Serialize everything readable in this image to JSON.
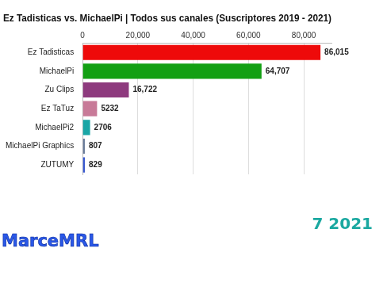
{
  "chart_data": {
    "type": "bar",
    "orientation": "horizontal",
    "title": "Ez Tadisticas vs. MichaelPi | Todos sus canales (Suscriptores 2019 - 2021)",
    "categories": [
      "Ez Tadisticas",
      "MichaelPi",
      "Zu Clips",
      "Ez TaTuz",
      "MichaelPi2",
      "MichaelPi Graphics",
      "ZUTUMY"
    ],
    "values": [
      86015,
      64707,
      16722,
      5232,
      2706,
      807,
      829
    ],
    "value_labels": [
      "86,015",
      "64,707",
      "16,722",
      "5232",
      "2706",
      "807",
      "829"
    ],
    "colors": [
      "#ee0a0a",
      "#13a013",
      "#8e3a7e",
      "#c87a98",
      "#19a6a6",
      "#6a7c9a",
      "#3a5ad0"
    ],
    "data_labels": true,
    "xlim": [
      0,
      90000
    ],
    "xticks": [
      0,
      {
        "value": 20000,
        "label": "20,000"
      },
      {
        "value": 40000,
        "label": "40,000"
      },
      {
        "value": 60000,
        "label": "60,000"
      },
      {
        "value": 80000,
        "label": "80,000"
      }
    ],
    "grid": true,
    "annotations": [
      "7 2021",
      "MarceMRL"
    ]
  }
}
